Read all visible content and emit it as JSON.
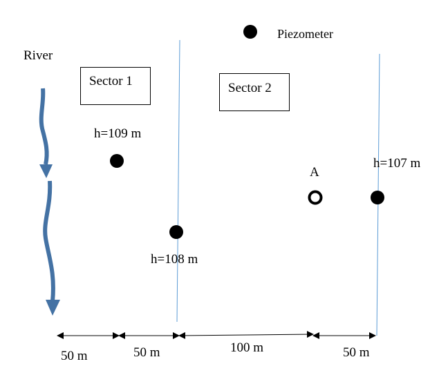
{
  "legend": {
    "symbol": "filled-dot",
    "label": "Piezometer"
  },
  "river": {
    "label": "River",
    "color": "#4472a4"
  },
  "sectors": [
    {
      "label": "Sector 1"
    },
    {
      "label": "Sector 2"
    }
  ],
  "piezometers": [
    {
      "id": "p1",
      "head_label": "h=109 m",
      "type": "filled"
    },
    {
      "id": "p2",
      "head_label": "h=108 m",
      "type": "filled"
    },
    {
      "id": "p3",
      "head_label": "h=107 m",
      "type": "filled"
    }
  ],
  "point_a": {
    "label": "A",
    "type": "hollow"
  },
  "boundary_line_color": "#5b9bd5",
  "dimensions": [
    {
      "label": "50 m"
    },
    {
      "label": "50 m"
    },
    {
      "label": "100 m"
    },
    {
      "label": "50 m"
    }
  ]
}
